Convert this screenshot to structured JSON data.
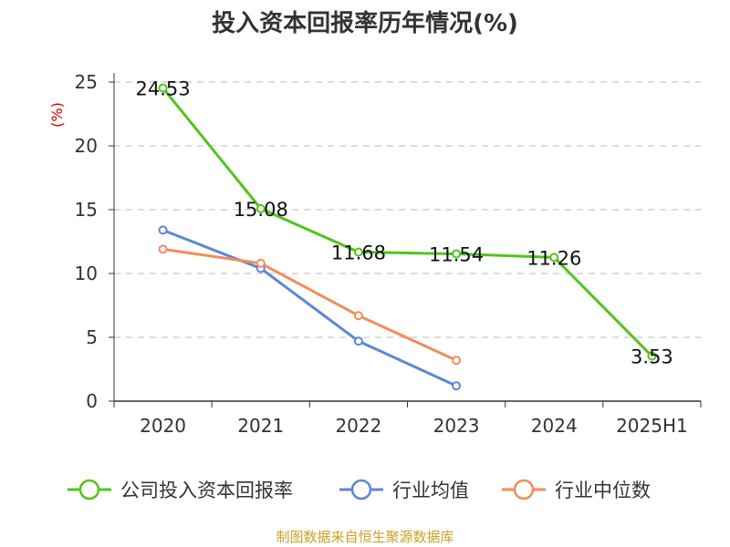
{
  "chart_data": {
    "type": "line",
    "title": "投入资本回报率历年情况(%)",
    "ylabel": "(%)",
    "categories": [
      "2020",
      "2021",
      "2022",
      "2023",
      "2024",
      "2025H1"
    ],
    "ylim": [
      0,
      25
    ],
    "yticks": [
      0,
      5,
      10,
      15,
      20,
      25
    ],
    "grid": true,
    "legend_position": "bottom",
    "series": [
      {
        "name": "公司投入资本回报率",
        "color": "#52c41a",
        "values": [
          24.53,
          15.08,
          11.68,
          11.54,
          11.26,
          3.53
        ],
        "labels": [
          "24.53",
          "15.08",
          "11.68",
          "11.54",
          "11.26",
          "3.53"
        ]
      },
      {
        "name": "行业均值",
        "color": "#5b87d9",
        "values": [
          13.4,
          10.4,
          4.7,
          1.2,
          null,
          null
        ]
      },
      {
        "name": "行业中位数",
        "color": "#f28c5a",
        "values": [
          11.9,
          10.8,
          6.7,
          3.2,
          null,
          null
        ]
      }
    ]
  },
  "source": "制图数据来自恒生聚源数据库"
}
